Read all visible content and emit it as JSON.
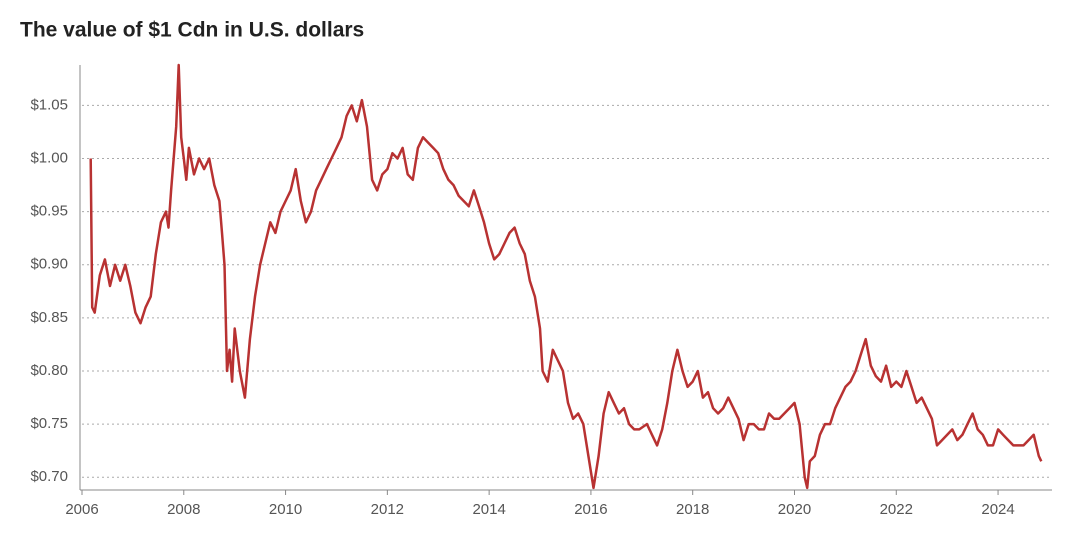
{
  "chart_data": {
    "type": "line",
    "title": "The value of $1 Cdn in U.S. dollars",
    "x": [
      2006.17,
      2006.2,
      2006.25,
      2006.35,
      2006.45,
      2006.55,
      2006.65,
      2006.75,
      2006.85,
      2006.95,
      2007.05,
      2007.15,
      2007.25,
      2007.35,
      2007.45,
      2007.55,
      2007.65,
      2007.7,
      2007.75,
      2007.85,
      2007.9,
      2007.95,
      2008.0,
      2008.05,
      2008.1,
      2008.2,
      2008.3,
      2008.4,
      2008.5,
      2008.6,
      2008.7,
      2008.75,
      2008.8,
      2008.85,
      2008.9,
      2008.95,
      2009.0,
      2009.1,
      2009.2,
      2009.3,
      2009.4,
      2009.5,
      2009.6,
      2009.7,
      2009.8,
      2009.9,
      2010.0,
      2010.1,
      2010.2,
      2010.3,
      2010.4,
      2010.5,
      2010.6,
      2010.7,
      2010.8,
      2010.9,
      2011.0,
      2011.1,
      2011.2,
      2011.3,
      2011.4,
      2011.5,
      2011.6,
      2011.7,
      2011.8,
      2011.9,
      2012.0,
      2012.1,
      2012.2,
      2012.3,
      2012.4,
      2012.5,
      2012.6,
      2012.7,
      2012.8,
      2012.9,
      2013.0,
      2013.1,
      2013.2,
      2013.3,
      2013.4,
      2013.5,
      2013.6,
      2013.7,
      2013.8,
      2013.9,
      2014.0,
      2014.1,
      2014.2,
      2014.3,
      2014.4,
      2014.5,
      2014.6,
      2014.7,
      2014.8,
      2014.9,
      2015.0,
      2015.05,
      2015.15,
      2015.25,
      2015.35,
      2015.45,
      2015.55,
      2015.65,
      2015.75,
      2015.85,
      2015.95,
      2016.05,
      2016.15,
      2016.25,
      2016.35,
      2016.45,
      2016.55,
      2016.65,
      2016.75,
      2016.85,
      2016.95,
      2017.1,
      2017.2,
      2017.3,
      2017.4,
      2017.5,
      2017.6,
      2017.7,
      2017.8,
      2017.9,
      2018.0,
      2018.1,
      2018.2,
      2018.3,
      2018.4,
      2018.5,
      2018.6,
      2018.7,
      2018.8,
      2018.9,
      2019.0,
      2019.1,
      2019.2,
      2019.3,
      2019.4,
      2019.5,
      2019.6,
      2019.7,
      2019.8,
      2019.9,
      2020.0,
      2020.1,
      2020.2,
      2020.25,
      2020.3,
      2020.4,
      2020.5,
      2020.6,
      2020.7,
      2020.8,
      2020.9,
      2021.0,
      2021.1,
      2021.2,
      2021.3,
      2021.4,
      2021.5,
      2021.6,
      2021.7,
      2021.8,
      2021.9,
      2022.0,
      2022.1,
      2022.2,
      2022.3,
      2022.4,
      2022.5,
      2022.6,
      2022.7,
      2022.8,
      2022.9,
      2023.0,
      2023.1,
      2023.2,
      2023.3,
      2023.4,
      2023.5,
      2023.6,
      2023.7,
      2023.8,
      2023.9,
      2024.0,
      2024.1,
      2024.2,
      2024.3,
      2024.4,
      2024.5,
      2024.6,
      2024.7,
      2024.8,
      2024.85
    ],
    "values": [
      1.0,
      0.86,
      0.855,
      0.89,
      0.905,
      0.88,
      0.9,
      0.885,
      0.9,
      0.88,
      0.855,
      0.845,
      0.86,
      0.87,
      0.91,
      0.94,
      0.95,
      0.935,
      0.97,
      1.03,
      1.088,
      1.02,
      1.0,
      0.98,
      1.01,
      0.985,
      1.0,
      0.99,
      1.0,
      0.975,
      0.96,
      0.93,
      0.9,
      0.8,
      0.82,
      0.79,
      0.84,
      0.8,
      0.775,
      0.83,
      0.87,
      0.9,
      0.92,
      0.94,
      0.93,
      0.95,
      0.96,
      0.97,
      0.99,
      0.96,
      0.94,
      0.95,
      0.97,
      0.98,
      0.99,
      1.0,
      1.01,
      1.02,
      1.04,
      1.05,
      1.035,
      1.055,
      1.03,
      0.98,
      0.97,
      0.985,
      0.99,
      1.005,
      1.0,
      1.01,
      0.985,
      0.98,
      1.01,
      1.02,
      1.015,
      1.01,
      1.005,
      0.99,
      0.98,
      0.975,
      0.965,
      0.96,
      0.955,
      0.97,
      0.955,
      0.94,
      0.92,
      0.905,
      0.91,
      0.92,
      0.93,
      0.935,
      0.92,
      0.91,
      0.885,
      0.87,
      0.84,
      0.8,
      0.79,
      0.82,
      0.81,
      0.8,
      0.77,
      0.755,
      0.76,
      0.75,
      0.72,
      0.69,
      0.72,
      0.76,
      0.78,
      0.77,
      0.76,
      0.765,
      0.75,
      0.745,
      0.745,
      0.75,
      0.74,
      0.73,
      0.745,
      0.77,
      0.8,
      0.82,
      0.8,
      0.785,
      0.79,
      0.8,
      0.775,
      0.78,
      0.765,
      0.76,
      0.765,
      0.775,
      0.765,
      0.755,
      0.735,
      0.75,
      0.75,
      0.745,
      0.745,
      0.76,
      0.755,
      0.755,
      0.76,
      0.765,
      0.77,
      0.75,
      0.7,
      0.69,
      0.715,
      0.72,
      0.74,
      0.75,
      0.75,
      0.765,
      0.775,
      0.785,
      0.79,
      0.8,
      0.815,
      0.83,
      0.805,
      0.795,
      0.79,
      0.805,
      0.785,
      0.79,
      0.785,
      0.8,
      0.785,
      0.77,
      0.775,
      0.765,
      0.755,
      0.73,
      0.735,
      0.74,
      0.745,
      0.735,
      0.74,
      0.75,
      0.76,
      0.745,
      0.74,
      0.73,
      0.73,
      0.745,
      0.74,
      0.735,
      0.73,
      0.73,
      0.73,
      0.735,
      0.74,
      0.72,
      0.715
    ],
    "color": "#b83232",
    "xlim": [
      2006,
      2025.06
    ],
    "xticks": [
      2006,
      2008,
      2010,
      2012,
      2014,
      2016,
      2018,
      2020,
      2022,
      2024
    ],
    "ylim": [
      0.688,
      1.088
    ],
    "yticks": [
      {
        "value": 0.7,
        "label": "$0.70"
      },
      {
        "value": 0.75,
        "label": "$0.75"
      },
      {
        "value": 0.8,
        "label": "$0.80"
      },
      {
        "value": 0.85,
        "label": "$0.85"
      },
      {
        "value": 0.9,
        "label": "$0.90"
      },
      {
        "value": 0.95,
        "label": "$0.95"
      },
      {
        "value": 1.0,
        "label": "$1.00"
      },
      {
        "value": 1.05,
        "label": "$1.05"
      }
    ],
    "grid": true
  }
}
